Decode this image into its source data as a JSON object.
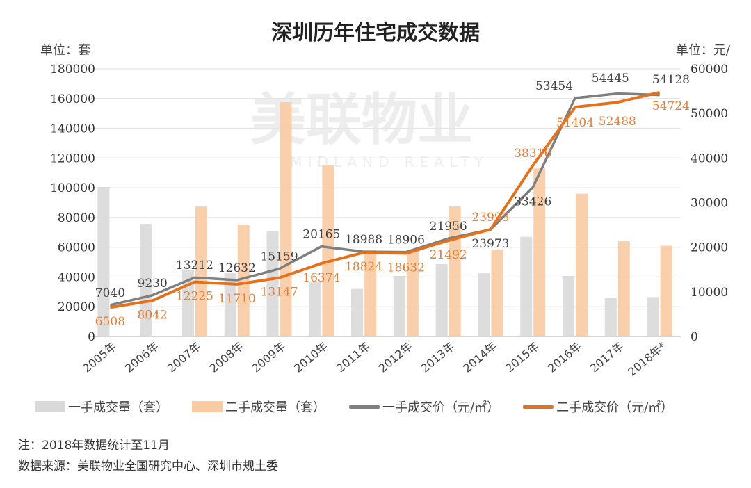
{
  "chart_data": {
    "type": "bar+line",
    "title": "深圳历年住宅成交数据",
    "left_unit": "单位：套",
    "right_unit": "单位：元/",
    "categories": [
      "2005年",
      "2006年",
      "2007年",
      "2008年",
      "2009年",
      "2010年",
      "2011年",
      "2012年",
      "2013年",
      "2014年",
      "2015年",
      "2016年",
      "2017年",
      "2018年*"
    ],
    "left_axis": {
      "range": [
        0,
        180000
      ],
      "ticks": [
        "0",
        "20000",
        "40000",
        "60000",
        "80000",
        "100000",
        "120000",
        "140000",
        "160000",
        "180000"
      ]
    },
    "right_axis": {
      "range": [
        0,
        60000
      ],
      "ticks": [
        "0",
        "10000",
        "20000",
        "30000",
        "40000",
        "50000",
        "60000"
      ]
    },
    "grid": true,
    "legend_placement": "bottom",
    "series": [
      {
        "name": "一手成交量（套）",
        "kind": "bar",
        "axis": "left",
        "color": "#d9d9d9",
        "values": [
          100500,
          75700,
          45000,
          42500,
          70600,
          37000,
          32000,
          40700,
          48600,
          42500,
          67000,
          40700,
          26000,
          26500
        ]
      },
      {
        "name": "二手成交量（套）",
        "kind": "bar",
        "axis": "left",
        "color": "#f9cba3",
        "values": [
          null,
          null,
          87400,
          75000,
          157500,
          115500,
          58000,
          58000,
          87400,
          58000,
          113000,
          96000,
          64000,
          61000
        ]
      },
      {
        "name": "一手成交价（元/㎡）",
        "kind": "line",
        "axis": "right",
        "color": "#7f7f7f",
        "values": [
          7040,
          9230,
          13212,
          12632,
          15159,
          20165,
          18988,
          18906,
          21956,
          23973,
          33426,
          53454,
          54445,
          54128
        ],
        "labels": [
          "7040",
          "9230",
          "13212",
          "12632",
          "15159",
          "20165",
          "18988",
          "18906",
          "21956",
          "23973",
          "33426",
          "53454",
          "54445",
          "54128"
        ]
      },
      {
        "name": "二手成交价（元/㎡）",
        "kind": "line",
        "axis": "right",
        "color": "#e5711c",
        "values": [
          6508,
          8042,
          12225,
          11710,
          13147,
          16374,
          18824,
          18632,
          21492,
          23993,
          38316,
          51404,
          52488,
          54724
        ],
        "labels": [
          "6508",
          "8042",
          "12225",
          "11710",
          "13147",
          "16374",
          "18824",
          "18632",
          "21492",
          "23993",
          "38316",
          "51404",
          "52488",
          "54724"
        ]
      }
    ]
  },
  "watermark": {
    "main": "美联物业",
    "sub": "MIDLAND REALTY"
  },
  "notes": {
    "note": "注：2018年数据统计至11月",
    "source": "数据来源：美联物业全国研究中心、深圳市规土委"
  }
}
